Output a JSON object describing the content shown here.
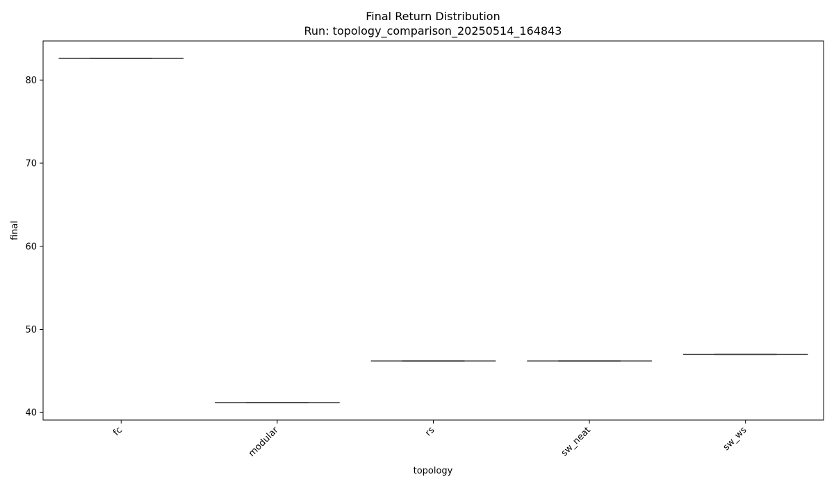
{
  "chart_data": {
    "type": "box",
    "title": "Final Return Distribution",
    "subtitle": "Run: topology_comparison_20250514_164843",
    "xlabel": "topology",
    "ylabel": "final",
    "categories": [
      "fc",
      "modular",
      "rs",
      "sw_neat",
      "sw_ws"
    ],
    "values": [
      82.6,
      41.2,
      46.2,
      46.2,
      47.0
    ],
    "ylim": [
      39.1,
      84.7
    ],
    "yticks": [
      40,
      50,
      60,
      70,
      80
    ],
    "grid": false,
    "legend": "none",
    "line_color": "#3d3d3d"
  }
}
